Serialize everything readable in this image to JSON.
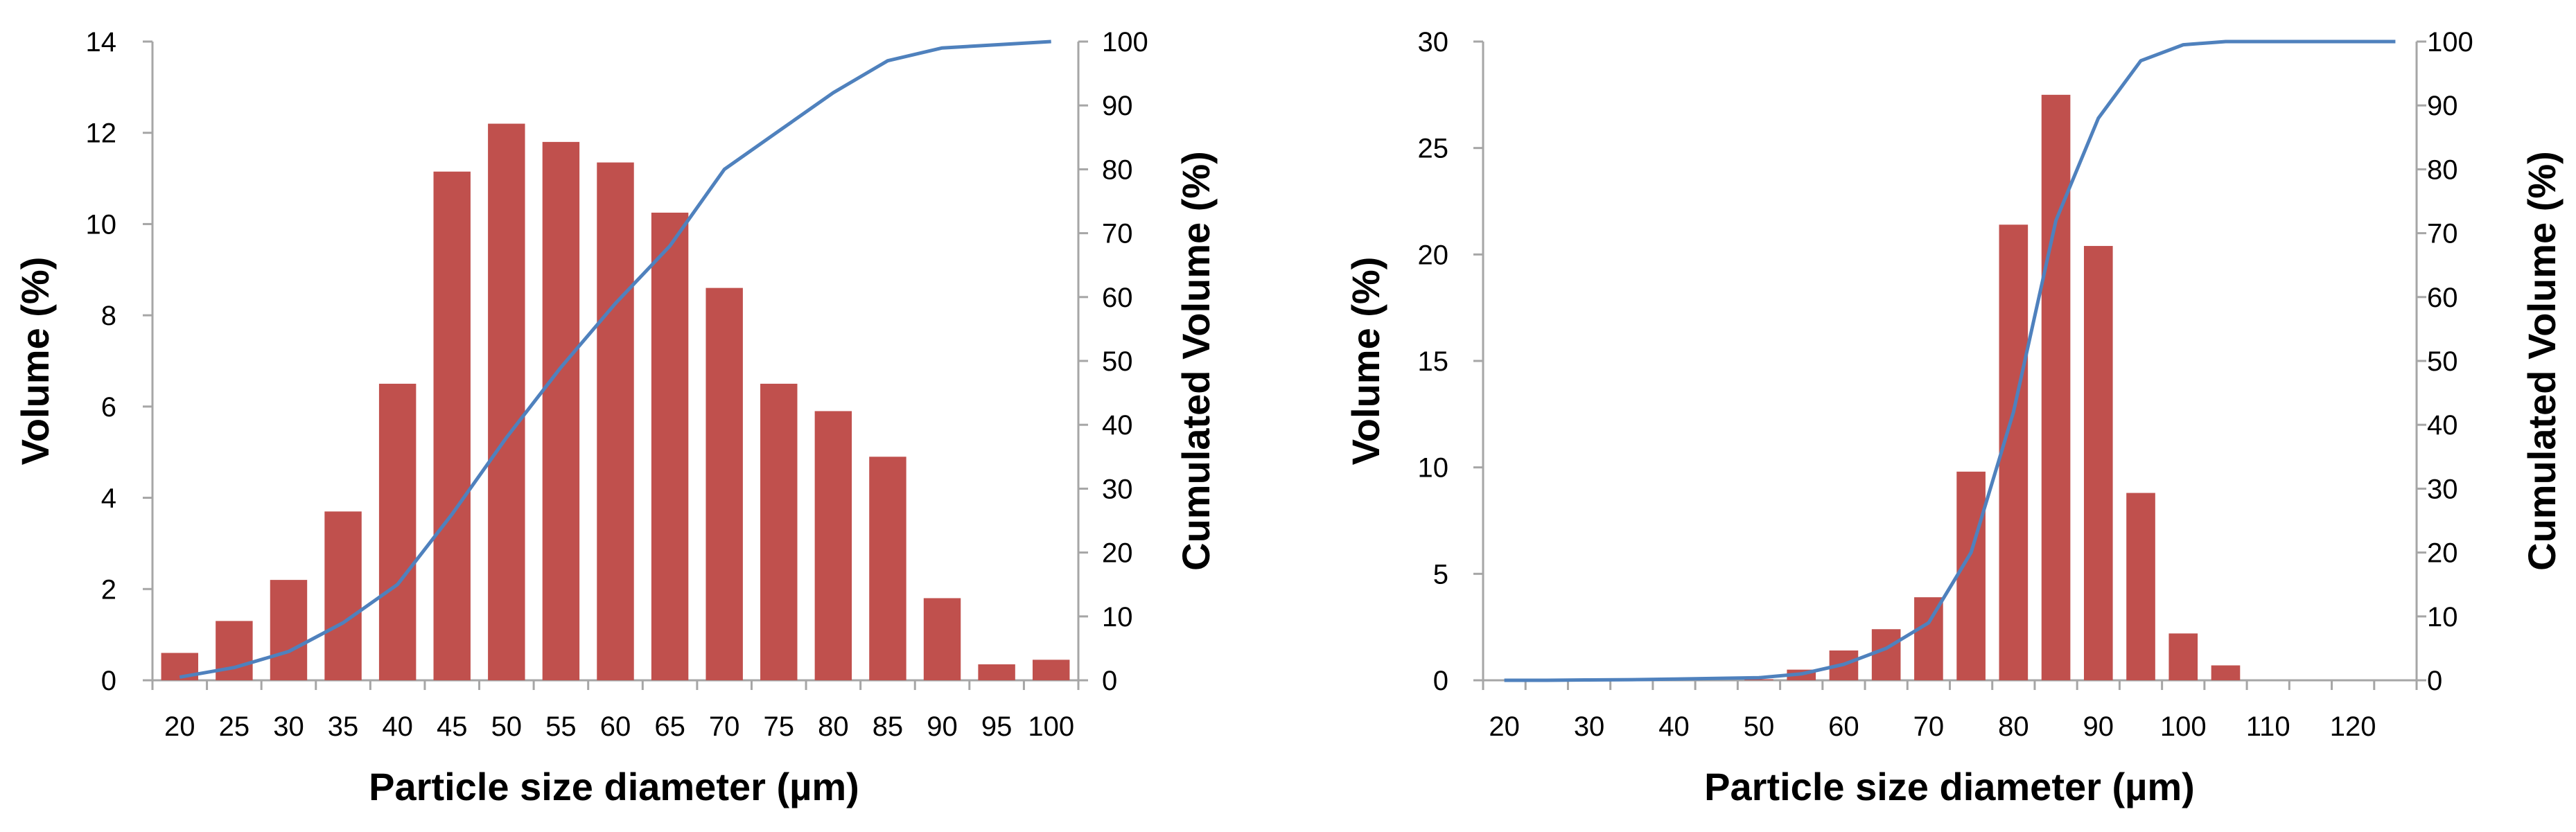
{
  "colors": {
    "bar": "#c0504d",
    "line": "#4f81bd",
    "axis": "#a6a6a6",
    "text": "#000000"
  },
  "chart_data": [
    {
      "type": "bar",
      "overlay": "line",
      "categories": [
        "20",
        "25",
        "30",
        "35",
        "40",
        "45",
        "50",
        "55",
        "60",
        "65",
        "70",
        "75",
        "80",
        "85",
        "90",
        "95",
        "100"
      ],
      "series": [
        {
          "axis": "left",
          "type": "bar",
          "values": [
            0.6,
            1.3,
            2.2,
            3.7,
            6.5,
            11.15,
            12.2,
            11.8,
            11.35,
            10.25,
            8.6,
            6.5,
            5.9,
            4.9,
            1.8,
            0.35,
            0.45
          ]
        },
        {
          "axis": "right",
          "type": "line",
          "values": [
            0.5,
            2,
            4.5,
            9,
            15,
            26,
            38,
            49,
            59,
            68,
            80,
            86,
            92,
            97,
            99,
            99.5,
            100
          ]
        }
      ],
      "xlabel": "Particle size diameter (µm)",
      "ylabel": "Volume (%)",
      "y2label": "Cumulated Volume (%)",
      "ylim": [
        0,
        14
      ],
      "yticks": [
        0,
        2,
        4,
        6,
        8,
        10,
        12,
        14
      ],
      "y2lim": [
        0,
        100
      ],
      "y2ticks": [
        0,
        10,
        20,
        30,
        40,
        50,
        60,
        70,
        80,
        90,
        100
      ],
      "grid": false
    },
    {
      "type": "bar",
      "overlay": "line",
      "categories": [
        "20",
        "25",
        "30",
        "35",
        "40",
        "45",
        "50",
        "55",
        "60",
        "65",
        "70",
        "75",
        "80",
        "85",
        "90",
        "95",
        "100",
        "105",
        "110",
        "115",
        "120",
        "125"
      ],
      "x_tick_labels": [
        "20",
        "30",
        "40",
        "50",
        "60",
        "70",
        "80",
        "90",
        "100",
        "110",
        "120"
      ],
      "series": [
        {
          "axis": "left",
          "type": "bar",
          "values": [
            0,
            0,
            0,
            0,
            0,
            0,
            0.05,
            0.5,
            1.4,
            2.4,
            3.9,
            9.8,
            21.4,
            27.5,
            20.4,
            8.8,
            2.2,
            0.7,
            0,
            0,
            0,
            0
          ]
        },
        {
          "axis": "right",
          "type": "line",
          "values": [
            0,
            0,
            0.05,
            0.1,
            0.2,
            0.3,
            0.4,
            1,
            2.5,
            5,
            9,
            20,
            42,
            72,
            88,
            97,
            99.5,
            100,
            100,
            100,
            100,
            100
          ]
        }
      ],
      "xlabel": "Particle size diameter (µm)",
      "ylabel": "Volume (%)",
      "y2label": "Cumulated Volume (%)",
      "ylim": [
        0,
        30
      ],
      "yticks": [
        0,
        5,
        10,
        15,
        20,
        25,
        30
      ],
      "y2lim": [
        0,
        100
      ],
      "y2ticks": [
        0,
        10,
        20,
        30,
        40,
        50,
        60,
        70,
        80,
        90,
        100
      ],
      "grid": false
    }
  ]
}
